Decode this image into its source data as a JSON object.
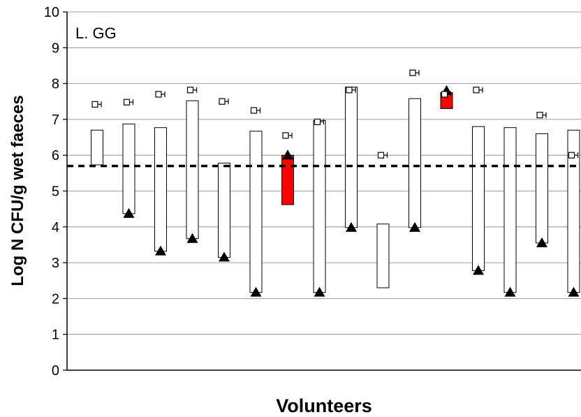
{
  "chart_data": {
    "type": "floating-bar",
    "panel_label": "L. GG",
    "xlabel": "Volunteers",
    "ylabel": "Log N CFU/g wet faeces",
    "ylim": [
      0,
      10
    ],
    "yticks": [
      0,
      1,
      2,
      3,
      4,
      5,
      6,
      7,
      8,
      9,
      10
    ],
    "grid": true,
    "threshold": 5.7,
    "series": [
      {
        "values_low": [
          5.73,
          4.37,
          3.32,
          3.67,
          3.15,
          2.17,
          4.62,
          2.17,
          3.98,
          2.3,
          3.98,
          7.3,
          2.78,
          2.17,
          3.55,
          2.17
        ]
      },
      {
        "values_high": [
          6.7,
          6.87,
          6.77,
          7.52,
          5.78,
          6.67,
          6.0,
          6.97,
          7.9,
          4.08,
          7.58,
          7.75,
          6.8,
          6.77,
          6.6,
          6.7
        ]
      },
      {
        "values": [
          null,
          4.37,
          3.32,
          3.67,
          3.15,
          2.17,
          6.0,
          2.17,
          3.98,
          null,
          3.98,
          7.8,
          2.78,
          2.17,
          3.55,
          2.17
        ]
      },
      {
        "values": [
          7.42,
          7.48,
          7.7,
          7.82,
          7.5,
          7.25,
          6.55,
          6.93,
          7.82,
          6.0,
          8.3,
          7.7,
          7.82,
          null,
          7.12,
          6.0
        ]
      }
    ],
    "highlighted": [
      6,
      11
    ],
    "colors": {
      "bar": "#ffffff",
      "highlight": "#ff0000",
      "stroke": "#000000",
      "grid": "#808080"
    }
  }
}
